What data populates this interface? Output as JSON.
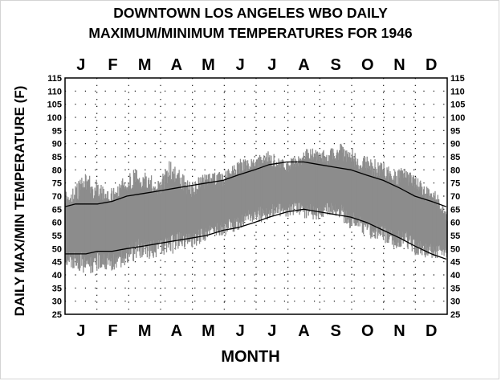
{
  "chart_data": {
    "type": "line",
    "title": "DOWNTOWN LOS ANGELES WBO DAILY MAXIMUM/MINIMUM TEMPERATURES FOR 1946",
    "title_lines": [
      "DOWNTOWN LOS ANGELES WBO DAILY",
      "MAXIMUM/MINIMUM TEMPERATURES FOR 1946"
    ],
    "xlabel": "MONTH",
    "ylabel": "DAILY MAX/MIN TEMPERATURE (F)",
    "months": [
      "J",
      "F",
      "M",
      "A",
      "M",
      "J",
      "J",
      "A",
      "S",
      "O",
      "N",
      "D"
    ],
    "xlim": [
      0,
      365
    ],
    "ylim": [
      25,
      115
    ],
    "yticks": [
      25,
      30,
      35,
      40,
      45,
      50,
      55,
      60,
      65,
      70,
      75,
      80,
      85,
      90,
      95,
      100,
      105,
      110,
      115
    ],
    "grid": "dotted",
    "series": [
      {
        "style": "band",
        "x": [
          0,
          10,
          20,
          31,
          40,
          50,
          59,
          70,
          80,
          90,
          100,
          110,
          120,
          130,
          140,
          151,
          160,
          170,
          181,
          190,
          200,
          212,
          220,
          230,
          243,
          250,
          260,
          273,
          280,
          290,
          304,
          315,
          325,
          334,
          345,
          355,
          364
        ],
        "high": [
          72,
          74,
          80,
          76,
          72,
          75,
          80,
          81,
          79,
          76,
          84,
          80,
          75,
          78,
          80,
          79,
          82,
          85,
          84,
          88,
          86,
          83,
          86,
          88,
          89,
          87,
          90,
          90,
          86,
          85,
          83,
          80,
          82,
          78,
          74,
          72,
          64
        ],
        "low": [
          43,
          42,
          40,
          41,
          42,
          41,
          44,
          46,
          46,
          47,
          47,
          50,
          50,
          52,
          54,
          55,
          56,
          58,
          60,
          60,
          62,
          62,
          63,
          61,
          61,
          62,
          62,
          57,
          56,
          54,
          52,
          50,
          50,
          47,
          46,
          46,
          46
        ]
      },
      {
        "style": "line",
        "x": [
          0,
          10,
          20,
          31,
          45,
          59,
          75,
          90,
          105,
          120,
          135,
          151,
          165,
          181,
          195,
          212,
          228,
          243,
          258,
          273,
          288,
          304,
          320,
          334,
          350,
          364
        ],
        "values": [
          66,
          67,
          67,
          67,
          68,
          70,
          71,
          72,
          73,
          74,
          75,
          76,
          78,
          80,
          82,
          83,
          83,
          82,
          81,
          80,
          78,
          76,
          73,
          70,
          68,
          66
        ]
      },
      {
        "style": "line",
        "x": [
          0,
          10,
          20,
          31,
          45,
          59,
          75,
          90,
          105,
          120,
          135,
          151,
          165,
          181,
          195,
          212,
          228,
          243,
          258,
          273,
          288,
          304,
          320,
          334,
          350,
          364
        ],
        "values": [
          48,
          48,
          48,
          49,
          49,
          50,
          51,
          52,
          53,
          54,
          55,
          57,
          58,
          60,
          62,
          64,
          65,
          64,
          63,
          62,
          60,
          57,
          54,
          51,
          48,
          46
        ]
      }
    ],
    "colors": {
      "band": "#8c8c8c",
      "line": "#000000",
      "grid": "#000000"
    }
  }
}
